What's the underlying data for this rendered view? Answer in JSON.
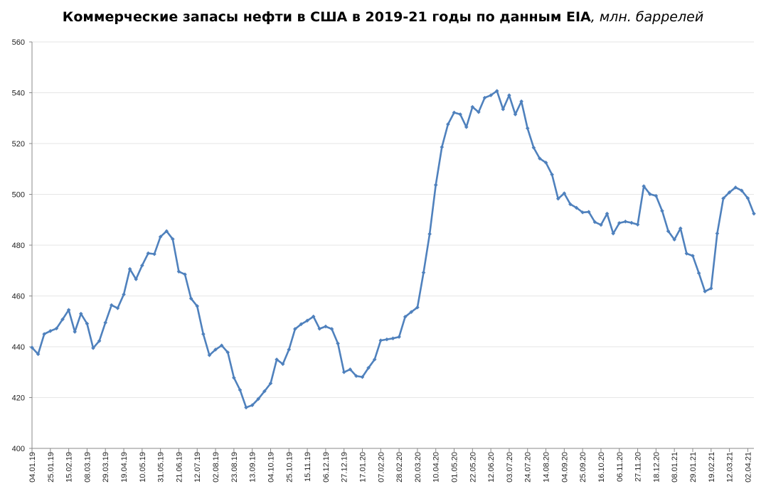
{
  "chart_data": {
    "type": "line",
    "title": "Коммерческие запасы нефти в США в 2019-21 годы по данным EIA",
    "title_units": ", млн. баррелей",
    "ylim": [
      400,
      560
    ],
    "ytick_step": 20,
    "grid": "horizontal",
    "line_color": "#4f81bd",
    "xtick_labels": [
      "04.01.19",
      "25.01.19",
      "15.02.19",
      "08.03.19",
      "29.03.19",
      "19.04.19",
      "10.05.19",
      "31.05.19",
      "21.06.19",
      "12.07.19",
      "02.08.19",
      "23.08.19",
      "13.09.19",
      "04.10.19",
      "25.10.19",
      "15.11.19",
      "06.12.19",
      "27.12.19",
      "17.01.20",
      "07.02.20",
      "28.02.20",
      "20.03.20",
      "10.04.20",
      "01.05.20",
      "22.05.20",
      "12.06.20",
      "03.07.20",
      "24.07.20",
      "14.08.20",
      "04.09.20",
      "25.09.20",
      "16.10.20",
      "06.11.20",
      "27.11.20",
      "18.12.20",
      "08.01.21",
      "29.01.21",
      "19.02.21",
      "12.03.21",
      "02.04.21"
    ],
    "values": [
      439.7,
      437.1,
      445.0,
      446.2,
      447.2,
      450.8,
      454.5,
      445.9,
      453.0,
      449.1,
      439.5,
      442.3,
      449.5,
      456.4,
      455.2,
      460.6,
      470.6,
      466.6,
      472.0,
      476.8,
      476.5,
      483.3,
      485.5,
      482.4,
      469.6,
      468.5,
      459.0,
      456.0,
      445.0,
      436.7,
      438.9,
      440.5,
      437.8,
      427.8,
      423.0,
      416.1,
      417.0,
      419.5,
      422.5,
      425.6,
      435.0,
      433.2,
      438.9,
      447.0,
      448.9,
      450.3,
      451.9,
      447.1,
      448.0,
      447.0,
      441.3,
      430.0,
      431.1,
      428.5,
      428.1,
      431.7,
      435.0,
      442.5,
      442.9,
      443.3,
      443.9,
      451.8,
      453.7,
      455.5,
      469.2,
      484.4,
      503.7,
      518.6,
      527.6,
      532.2,
      531.5,
      526.5,
      534.4,
      532.4,
      538.0,
      539.0,
      540.7,
      533.5,
      539.0,
      531.5,
      536.6,
      526.0,
      518.4,
      514.1,
      512.5,
      507.8,
      498.3,
      500.4,
      496.1,
      494.7,
      492.9,
      493.1,
      489.1,
      488.0,
      492.4,
      484.6,
      488.7,
      489.3,
      488.8,
      488.1,
      503.2,
      500.1,
      499.4,
      493.5,
      485.5,
      482.2,
      486.6,
      476.7,
      475.8,
      469.0,
      461.8,
      463.0,
      484.6,
      498.4,
      500.8,
      502.7,
      501.5,
      498.5,
      492.4
    ]
  }
}
